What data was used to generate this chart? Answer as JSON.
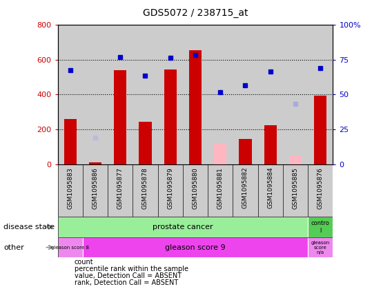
{
  "title": "GDS5072 / 238715_at",
  "samples": [
    "GSM1095883",
    "GSM1095886",
    "GSM1095877",
    "GSM1095878",
    "GSM1095879",
    "GSM1095880",
    "GSM1095881",
    "GSM1095882",
    "GSM1095884",
    "GSM1095885",
    "GSM1095876"
  ],
  "bar_values": [
    260,
    10,
    540,
    245,
    545,
    655,
    null,
    145,
    225,
    null,
    395
  ],
  "bar_absent_values": [
    null,
    null,
    null,
    null,
    null,
    null,
    120,
    null,
    null,
    50,
    null
  ],
  "dot_values": [
    540,
    null,
    615,
    510,
    610,
    625,
    415,
    455,
    530,
    null,
    550
  ],
  "dot_absent_values": [
    null,
    null,
    null,
    null,
    null,
    null,
    null,
    null,
    null,
    345,
    null
  ],
  "rank_absent_values": [
    null,
    155,
    null,
    null,
    null,
    null,
    null,
    null,
    null,
    null,
    null
  ],
  "ylim_left": [
    0,
    800
  ],
  "ylim_right": [
    0,
    100
  ],
  "left_ticks": [
    0,
    200,
    400,
    600,
    800
  ],
  "right_ticks": [
    0,
    25,
    50,
    75,
    100
  ],
  "bar_color": "#CC0000",
  "bar_absent_color": "#FFB6C1",
  "dot_color": "#0000CC",
  "dot_absent_color": "#AAAADD",
  "rank_absent_color": "#BBBBDD",
  "disease_state_color": "#99EE99",
  "control_color": "#55CC55",
  "gleason8_color": "#EE88EE",
  "gleason9_color": "#EE44EE",
  "gleasonna_color": "#EE88EE",
  "bg_col_color": "#CCCCCC",
  "left_label_color": "#CC0000",
  "right_label_color": "#0000CC",
  "legend_items": [
    [
      "#CC0000",
      "count"
    ],
    [
      "#0000CC",
      "percentile rank within the sample"
    ],
    [
      "#FFB6C1",
      "value, Detection Call = ABSENT"
    ],
    [
      "#AAAADD",
      "rank, Detection Call = ABSENT"
    ]
  ]
}
